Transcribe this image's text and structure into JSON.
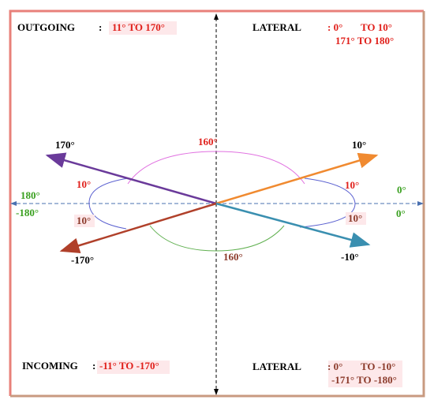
{
  "quadrants": {
    "top_left": {
      "title": "OUTGOING",
      "colon": ":",
      "range": "11° TO 170°"
    },
    "top_right": {
      "title": "LATERAL",
      "line1_a": ": 0°",
      "line1_b": "TO 10°",
      "line2": "171° TO 180°"
    },
    "bottom_left": {
      "title": "INCOMING",
      "colon": ":",
      "range": "-11° TO -170°"
    },
    "bottom_right": {
      "title": "LATERAL",
      "line1_a": ": 0°",
      "line1_b": "TO -10°",
      "line2": "-171° TO -180°"
    }
  },
  "angle_labels": {
    "upper_left_arrow": "170°",
    "upper_arc": "160°",
    "upper_right_arrow": "10°",
    "left_top": "180°",
    "left_bottom": "-180°",
    "left_loop_upper": "10°",
    "left_loop_lower": "10°",
    "right_loop_upper": "10°",
    "right_loop_lower": "10°",
    "right_top": "0°",
    "right_bottom": "0°",
    "lower_left_arrow": "-170°",
    "lower_arc": "160°",
    "lower_right_arrow": "-10°"
  }
}
